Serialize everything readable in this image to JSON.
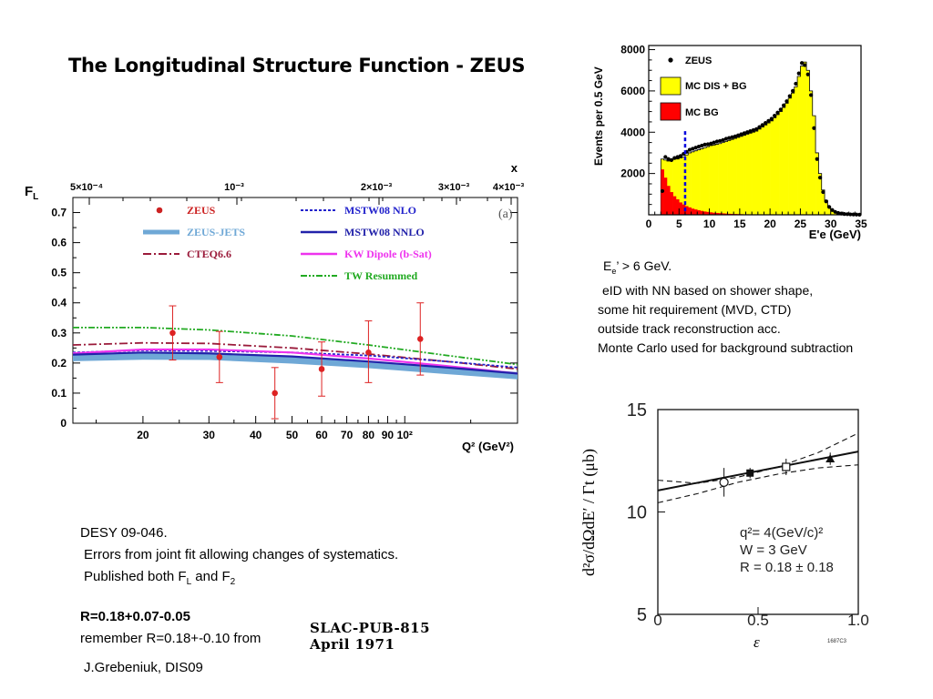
{
  "slide": {
    "title": "The Longitudinal Structure Function - ZEUS",
    "right_notes": {
      "l1_pre": "E",
      "l1_sub": "e",
      "l1_post": "’ > 6 GeV.",
      "l2": "eID with NN based on shower shape,",
      "l3": "some hit requirement (MVD, CTD)",
      "l4": "outside track reconstruction acc.",
      "l5": "Monte Carlo used for background subtraction"
    },
    "bottom_notes": {
      "l1": "DESY 09-046.",
      "l2": "Errors from joint fit allowing changes of systematics.",
      "l3_pre": "Published both F",
      "l3_sub1": "L",
      "l3_mid": " and F",
      "l3_sub2": "2",
      "l4": "R=0.18+0.07-0.05",
      "l5": "remember R=0.18+-0.10 from",
      "slac_l1": "SLAC-PUB-815",
      "slac_l2": "April 1971",
      "l6": "J.Grebeniuk,  DIS09"
    }
  },
  "chart_data": [
    {
      "type": "scatter",
      "panel": "FL vs Q2",
      "ylabel": "F",
      "ylabel_sub": "L",
      "xlabel": "Q² (GeV²)",
      "top_axis_label": "x",
      "panel_tag": "(a)",
      "ylim": [
        0,
        0.75
      ],
      "xlim": [
        13,
        200
      ],
      "xscale": "log",
      "yticks": [
        "0",
        "0.1",
        "0.2",
        "0.3",
        "0.4",
        "0.5",
        "0.6",
        "0.7"
      ],
      "xtick_labels": [
        {
          "q2": 20,
          "label": "20"
        },
        {
          "q2": 30,
          "label": "30"
        },
        {
          "q2": 40,
          "label": "40"
        },
        {
          "q2": 50,
          "label": "50"
        },
        {
          "q2": 60,
          "label": "60"
        },
        {
          "q2": 70,
          "label": "70"
        },
        {
          "q2": 80,
          "label": "80"
        },
        {
          "q2": 90,
          "label": "90"
        },
        {
          "q2": 100,
          "label": "10²"
        }
      ],
      "top_ticks": [
        "5×10⁻⁴",
        "10⁻³",
        "2×10⁻³",
        "3×10⁻³",
        "4×10⁻³"
      ],
      "legend": [
        {
          "name": "ZEUS",
          "color": "#cc2222",
          "style": "dot"
        },
        {
          "name": "ZEUS-JETS",
          "color": "#6fa8d6",
          "style": "band"
        },
        {
          "name": "CTEQ6.6",
          "color": "#9a1a3a",
          "style": "dashdot"
        },
        {
          "name": "MSTW08 NLO",
          "color": "#2222cc",
          "style": "dotted"
        },
        {
          "name": "MSTW08 NNLO",
          "color": "#2222aa",
          "style": "solid"
        },
        {
          "name": "KW Dipole (b-Sat)",
          "color": "#ee33ee",
          "style": "solid"
        },
        {
          "name": "TW Resummed",
          "color": "#22aa22",
          "style": "dashdotdot"
        }
      ],
      "points": [
        {
          "x": 24,
          "y": 0.3,
          "lo": 0.21,
          "hi": 0.39
        },
        {
          "x": 32,
          "y": 0.22,
          "lo": 0.135,
          "hi": 0.305
        },
        {
          "x": 45,
          "y": 0.1,
          "lo": 0.015,
          "hi": 0.185
        },
        {
          "x": 60,
          "y": 0.18,
          "lo": 0.09,
          "hi": 0.27
        },
        {
          "x": 80,
          "y": 0.235,
          "lo": 0.135,
          "hi": 0.34
        },
        {
          "x": 110,
          "y": 0.28,
          "lo": 0.16,
          "hi": 0.4
        }
      ],
      "curves": [
        {
          "name": "TW Resummed",
          "x": [
            13,
            20,
            30,
            50,
            80,
            130,
            200
          ],
          "y": [
            0.318,
            0.318,
            0.31,
            0.29,
            0.26,
            0.225,
            0.195
          ]
        },
        {
          "name": "CTEQ6.6",
          "x": [
            13,
            20,
            30,
            50,
            80,
            130,
            200
          ],
          "y": [
            0.26,
            0.267,
            0.265,
            0.25,
            0.23,
            0.205,
            0.18
          ]
        },
        {
          "name": "MSTW08 NLO",
          "x": [
            13,
            20,
            30,
            50,
            80,
            130,
            200
          ],
          "y": [
            0.235,
            0.242,
            0.24,
            0.235,
            0.225,
            0.205,
            0.185
          ]
        },
        {
          "name": "KW Dipole (b-Sat)",
          "x": [
            13,
            20,
            30,
            50,
            80,
            130,
            200
          ],
          "y": [
            0.232,
            0.245,
            0.245,
            0.235,
            0.215,
            0.19,
            0.165
          ]
        },
        {
          "name": "MSTW08 NNLO",
          "x": [
            13,
            20,
            30,
            50,
            80,
            130,
            200
          ],
          "y": [
            0.228,
            0.235,
            0.232,
            0.222,
            0.205,
            0.185,
            0.165
          ]
        },
        {
          "name": "ZEUS-JETS",
          "x": [
            13,
            20,
            30,
            50,
            80,
            130,
            200
          ],
          "y": [
            0.218,
            0.223,
            0.222,
            0.21,
            0.195,
            0.175,
            0.158
          ]
        }
      ]
    },
    {
      "type": "bar",
      "panel": "E'e spectrum",
      "ylabel": "Events per 0.5 GeV",
      "xlabel": "E'e (GeV)",
      "xlim": [
        0,
        35
      ],
      "ylim": [
        0,
        8200
      ],
      "xticks": [
        "0",
        "5",
        "10",
        "15",
        "20",
        "25",
        "30",
        "35"
      ],
      "yticks": [
        "2000",
        "4000",
        "6000",
        "8000"
      ],
      "cut_line_at": 6,
      "legend": [
        {
          "name": "ZEUS",
          "color": "#000000"
        },
        {
          "name": "MC DIS + BG",
          "color": "#ffff00"
        },
        {
          "name": "MC BG",
          "color": "#ff0000"
        }
      ],
      "bin_width": 0.5,
      "mc_dis_bg": [
        [
          2.0,
          2700
        ],
        [
          2.5,
          2650
        ],
        [
          3.0,
          2600
        ],
        [
          3.5,
          2650
        ],
        [
          4.0,
          2700
        ],
        [
          4.5,
          2700
        ],
        [
          5.0,
          2750
        ],
        [
          5.5,
          2800
        ],
        [
          6.0,
          2900
        ],
        [
          6.5,
          3000
        ],
        [
          7.0,
          3050
        ],
        [
          7.5,
          3100
        ],
        [
          8.0,
          3150
        ],
        [
          8.5,
          3200
        ],
        [
          9.0,
          3250
        ],
        [
          9.5,
          3300
        ],
        [
          10.0,
          3350
        ],
        [
          10.5,
          3380
        ],
        [
          11.0,
          3420
        ],
        [
          11.5,
          3450
        ],
        [
          12.0,
          3500
        ],
        [
          12.5,
          3550
        ],
        [
          13.0,
          3600
        ],
        [
          13.5,
          3650
        ],
        [
          14.0,
          3700
        ],
        [
          14.5,
          3750
        ],
        [
          15.0,
          3800
        ],
        [
          15.5,
          3850
        ],
        [
          16.0,
          3900
        ],
        [
          16.5,
          3950
        ],
        [
          17.0,
          4000
        ],
        [
          17.5,
          4050
        ],
        [
          18.0,
          4150
        ],
        [
          18.5,
          4250
        ],
        [
          19.0,
          4350
        ],
        [
          19.5,
          4450
        ],
        [
          20.0,
          4550
        ],
        [
          20.5,
          4700
        ],
        [
          21.0,
          4850
        ],
        [
          21.5,
          5000
        ],
        [
          22.0,
          5200
        ],
        [
          22.5,
          5400
        ],
        [
          23.0,
          5650
        ],
        [
          23.5,
          5900
        ],
        [
          24.0,
          6200
        ],
        [
          24.5,
          6700
        ],
        [
          25.0,
          7200
        ],
        [
          25.5,
          7400
        ],
        [
          26.0,
          7000
        ],
        [
          26.5,
          6000
        ],
        [
          27.0,
          4800
        ],
        [
          27.5,
          3000
        ],
        [
          28.0,
          2000
        ],
        [
          28.5,
          1200
        ],
        [
          29.0,
          700
        ],
        [
          29.5,
          400
        ],
        [
          30.0,
          250
        ],
        [
          30.5,
          150
        ],
        [
          31.0,
          100
        ],
        [
          31.5,
          60
        ],
        [
          32.0,
          40
        ],
        [
          32.5,
          30
        ],
        [
          33.0,
          20
        ],
        [
          33.5,
          15
        ],
        [
          34.0,
          10
        ],
        [
          34.5,
          5
        ]
      ],
      "mc_bg": [
        [
          2.0,
          2200
        ],
        [
          2.5,
          1800
        ],
        [
          3.0,
          1400
        ],
        [
          3.5,
          1100
        ],
        [
          4.0,
          900
        ],
        [
          4.5,
          750
        ],
        [
          5.0,
          600
        ],
        [
          5.5,
          500
        ],
        [
          6.0,
          420
        ],
        [
          6.5,
          360
        ],
        [
          7.0,
          300
        ],
        [
          7.5,
          260
        ],
        [
          8.0,
          220
        ],
        [
          8.5,
          190
        ],
        [
          9.0,
          160
        ],
        [
          9.5,
          140
        ],
        [
          10.0,
          120
        ],
        [
          10.5,
          100
        ],
        [
          11.0,
          90
        ],
        [
          11.5,
          80
        ],
        [
          12.0,
          70
        ],
        [
          12.5,
          60
        ],
        [
          13.0,
          50
        ],
        [
          13.5,
          45
        ],
        [
          14.0,
          40
        ],
        [
          14.5,
          35
        ],
        [
          15.0,
          30
        ],
        [
          16.0,
          25
        ],
        [
          17.0,
          20
        ],
        [
          18.0,
          15
        ],
        [
          19.0,
          10
        ],
        [
          20.0,
          8
        ]
      ],
      "zeus_points": [
        [
          2.25,
          1150
        ],
        [
          2.75,
          2800
        ],
        [
          3.25,
          2700
        ],
        [
          3.75,
          2650
        ],
        [
          4.25,
          2750
        ],
        [
          4.75,
          2800
        ],
        [
          5.25,
          2850
        ],
        [
          5.75,
          2950
        ],
        [
          6.25,
          3050
        ],
        [
          6.75,
          3150
        ],
        [
          7.25,
          3200
        ],
        [
          7.75,
          3250
        ],
        [
          8.25,
          3300
        ],
        [
          8.75,
          3350
        ],
        [
          9.25,
          3400
        ],
        [
          9.75,
          3420
        ],
        [
          10.25,
          3450
        ],
        [
          10.75,
          3500
        ],
        [
          11.25,
          3550
        ],
        [
          11.75,
          3580
        ],
        [
          12.25,
          3620
        ],
        [
          12.75,
          3680
        ],
        [
          13.25,
          3720
        ],
        [
          13.75,
          3760
        ],
        [
          14.25,
          3800
        ],
        [
          14.75,
          3850
        ],
        [
          15.25,
          3900
        ],
        [
          15.75,
          3950
        ],
        [
          16.25,
          4000
        ],
        [
          16.75,
          4050
        ],
        [
          17.25,
          4100
        ],
        [
          17.75,
          4150
        ],
        [
          18.25,
          4250
        ],
        [
          18.75,
          4350
        ],
        [
          19.25,
          4450
        ],
        [
          19.75,
          4550
        ],
        [
          20.25,
          4650
        ],
        [
          20.75,
          4800
        ],
        [
          21.25,
          4950
        ],
        [
          21.75,
          5100
        ],
        [
          22.25,
          5300
        ],
        [
          22.75,
          5500
        ],
        [
          23.25,
          5750
        ],
        [
          23.75,
          6000
        ],
        [
          24.25,
          6350
        ],
        [
          24.75,
          6850
        ],
        [
          25.25,
          7350
        ],
        [
          25.75,
          7250
        ],
        [
          26.25,
          6800
        ],
        [
          26.75,
          5800
        ],
        [
          27.25,
          4200
        ],
        [
          27.75,
          2700
        ],
        [
          28.25,
          1800
        ],
        [
          28.75,
          1100
        ],
        [
          29.25,
          650
        ],
        [
          29.75,
          380
        ],
        [
          30.25,
          230
        ],
        [
          30.75,
          140
        ],
        [
          31.25,
          90
        ],
        [
          31.75,
          60
        ],
        [
          32.25,
          40
        ],
        [
          32.75,
          30
        ],
        [
          33.25,
          20
        ],
        [
          33.75,
          15
        ],
        [
          34.25,
          10
        ],
        [
          34.75,
          5
        ]
      ]
    },
    {
      "type": "scatter",
      "panel": "SLAC cross section vs epsilon",
      "ylabel": "d²σ/dΩdE′ / Γt (μb)",
      "xlabel": "ε",
      "xlim": [
        0,
        1.0
      ],
      "ylim": [
        5,
        15
      ],
      "xticks": [
        "0",
        "0.5",
        "1.0"
      ],
      "yticks": [
        "5",
        "10",
        "15"
      ],
      "annotations": [
        "q²= 4(GeV/c)²",
        "W = 3 GeV",
        "R = 0.18 ± 0.18"
      ],
      "corner_label": "1687C3",
      "points": [
        {
          "x": 0.33,
          "y": 11.45,
          "err": 0.7,
          "marker": "open-circle"
        },
        {
          "x": 0.46,
          "y": 11.9,
          "err": 0.25,
          "marker": "filled-square"
        },
        {
          "x": 0.64,
          "y": 12.2,
          "err": 0.4,
          "marker": "open-square"
        },
        {
          "x": 0.86,
          "y": 12.6,
          "err": 0.3,
          "marker": "filled-triangle"
        }
      ],
      "fit_line": {
        "x": [
          0,
          1.0
        ],
        "y": [
          11.05,
          12.95
        ]
      },
      "band_upper": {
        "x": [
          0,
          0.2,
          0.4,
          0.6,
          0.8,
          1.0
        ],
        "y": [
          11.55,
          11.4,
          11.7,
          12.2,
          12.9,
          13.85
        ]
      },
      "band_lower": {
        "x": [
          0,
          0.2,
          0.4,
          0.6,
          0.8,
          1.0
        ],
        "y": [
          10.45,
          10.9,
          11.45,
          11.85,
          12.15,
          12.3
        ]
      }
    }
  ]
}
